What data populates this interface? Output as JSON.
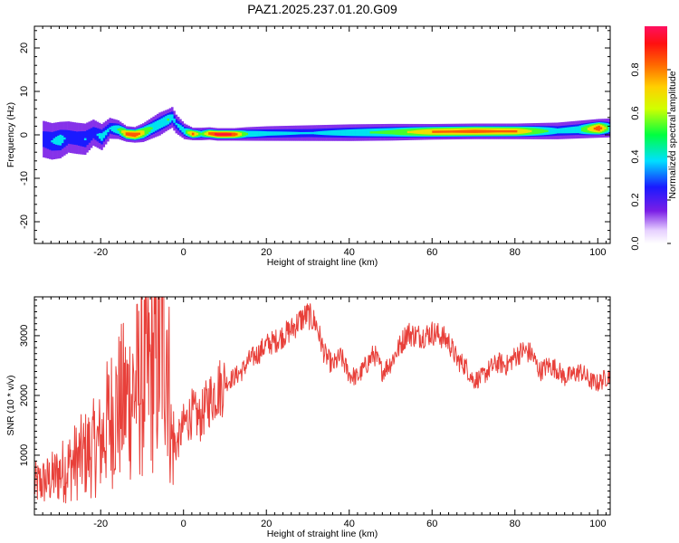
{
  "title": "PAZ1.2025.237.01.20.G09",
  "chart_data": [
    {
      "type": "heatmap",
      "xlabel": "Height of straight line (km)",
      "ylabel": "Frequency (Hz)",
      "xlim": [
        -36,
        103
      ],
      "ylim": [
        -25,
        25
      ],
      "xticks": [
        -20,
        0,
        20,
        40,
        60,
        80,
        100
      ],
      "yticks": [
        -20,
        -10,
        0,
        10,
        20
      ],
      "ridge": {
        "x": [
          -34,
          -32,
          -30,
          -28,
          -26,
          -24,
          -22,
          -20,
          -18,
          -16,
          -14,
          -12,
          -10,
          -8,
          -6,
          -4,
          -3,
          -2,
          0,
          2,
          4,
          6,
          8,
          10,
          12,
          15,
          20,
          30,
          40,
          50,
          60,
          70,
          80,
          90,
          95,
          100,
          103
        ],
        "freq": [
          -1.0,
          -1.5,
          -1.2,
          -0.5,
          -0.8,
          -1.0,
          0.5,
          -0.5,
          1.5,
          1.2,
          0.2,
          0.0,
          0.5,
          1.5,
          2.5,
          3.5,
          4.0,
          2.5,
          0.8,
          0.2,
          0.2,
          0.3,
          0.1,
          0.1,
          0.1,
          0.2,
          0.3,
          0.4,
          0.5,
          0.6,
          0.7,
          0.8,
          0.8,
          0.9,
          1.2,
          1.5,
          1.6
        ],
        "amplitude": [
          0.3,
          0.35,
          0.4,
          0.3,
          0.3,
          0.35,
          0.3,
          0.4,
          0.35,
          0.5,
          0.85,
          0.9,
          0.7,
          0.5,
          0.45,
          0.5,
          0.4,
          0.35,
          0.45,
          0.85,
          0.5,
          0.85,
          0.95,
          0.95,
          0.9,
          0.5,
          0.4,
          0.35,
          0.45,
          0.55,
          0.8,
          0.85,
          0.8,
          0.4,
          0.45,
          0.9,
          0.4
        ],
        "width_hz": [
          3.5,
          3.5,
          3.5,
          3.0,
          3.0,
          3.0,
          2.5,
          2.5,
          2.0,
          1.8,
          1.5,
          1.5,
          1.8,
          2.0,
          2.2,
          2.0,
          2.0,
          1.8,
          1.5,
          1.2,
          1.2,
          1.2,
          1.2,
          1.2,
          1.2,
          1.3,
          1.4,
          1.5,
          1.6,
          1.6,
          1.5,
          1.5,
          1.5,
          1.6,
          1.7,
          1.8,
          1.8
        ]
      },
      "colorbar": {
        "label": "Normalized spectral amplitude",
        "range": [
          0,
          1
        ],
        "ticks": [
          "0.0",
          "0.2",
          "0.4",
          "0.6",
          "0.8"
        ]
      }
    },
    {
      "type": "line",
      "xlabel": "Height of straight line (km)",
      "ylabel": "SNR (10 * v/v)",
      "xlim": [
        -36,
        103
      ],
      "ylim": [
        0,
        3650
      ],
      "xticks": [
        -20,
        0,
        20,
        40,
        60,
        80,
        100
      ],
      "yticks": [
        1000,
        2000,
        3000
      ],
      "color": "#e8403a",
      "series": [
        {
          "x": [
            -36,
            -32,
            -28,
            -24,
            -20,
            -18,
            -16,
            -14,
            -12,
            -10,
            -8,
            -6,
            -5,
            -4,
            -3.5,
            -3,
            -2,
            0,
            2,
            4,
            6,
            8,
            10,
            12,
            14,
            16,
            18,
            20,
            22,
            24,
            26,
            28,
            30,
            32,
            34,
            36,
            38,
            40,
            42,
            44,
            46,
            48,
            50,
            52,
            54,
            56,
            58,
            60,
            62,
            64,
            66,
            68,
            70,
            72,
            74,
            76,
            78,
            80,
            82,
            84,
            86,
            88,
            90,
            92,
            94,
            96,
            98,
            100,
            103
          ],
          "y": [
            500,
            600,
            800,
            1000,
            1200,
            1600,
            1800,
            1900,
            2100,
            2200,
            2400,
            2600,
            3000,
            3200,
            2200,
            1300,
            1100,
            1500,
            1700,
            1600,
            1900,
            2100,
            2200,
            2300,
            2400,
            2600,
            2700,
            2850,
            2900,
            3000,
            3100,
            3250,
            3350,
            3200,
            2700,
            2500,
            2650,
            2350,
            2300,
            2500,
            2700,
            2400,
            2550,
            2800,
            3050,
            3000,
            3000,
            3050,
            3000,
            2900,
            2600,
            2500,
            2250,
            2300,
            2450,
            2550,
            2500,
            2650,
            2750,
            2700,
            2400,
            2500,
            2450,
            2300,
            2350,
            2400,
            2250,
            2200,
            2350
          ]
        }
      ]
    }
  ]
}
